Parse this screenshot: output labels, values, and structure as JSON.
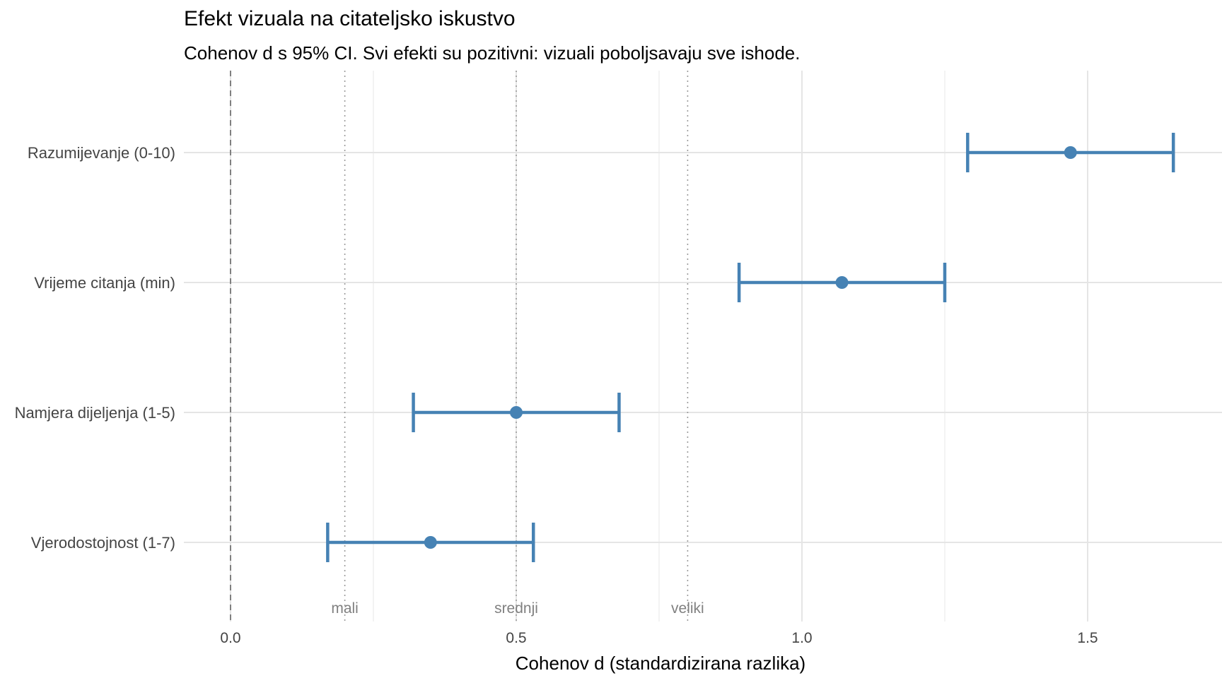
{
  "chart_data": {
    "type": "forest",
    "title": "Efekt vizuala na citateljsko iskustvo",
    "subtitle": "Cohenov d s 95% CI. Svi efekti su pozitivni: vizuali poboljsavaju sve ishode.",
    "xlabel": "Cohenov d (standardizirana razlika)",
    "ylabel": "",
    "xlim": [
      -0.05,
      1.73
    ],
    "x_ticks": [
      {
        "value": 0.0,
        "label": "0.0"
      },
      {
        "value": 0.5,
        "label": "0.5"
      },
      {
        "value": 1.0,
        "label": "1.0"
      },
      {
        "value": 1.5,
        "label": "1.5"
      }
    ],
    "categories": [
      "Razumijevanje (0-10)",
      "Vrijeme citanja (min)",
      "Namjera dijeljenja (1-5)",
      "Vjerodostojnost (1-7)"
    ],
    "estimates": [
      1.47,
      1.07,
      0.5,
      0.35
    ],
    "ci_low": [
      1.29,
      0.89,
      0.32,
      0.17
    ],
    "ci_high": [
      1.65,
      1.25,
      0.68,
      0.53
    ],
    "reference_lines": [
      {
        "value": 0.0,
        "style": "dashed",
        "label": ""
      },
      {
        "value": 0.2,
        "style": "dotted",
        "label": "mali"
      },
      {
        "value": 0.5,
        "style": "dotted",
        "label": "srednji"
      },
      {
        "value": 0.8,
        "style": "dotted",
        "label": "veliki"
      }
    ],
    "point_color": "#4682b4",
    "grid": true,
    "legend": "none"
  }
}
